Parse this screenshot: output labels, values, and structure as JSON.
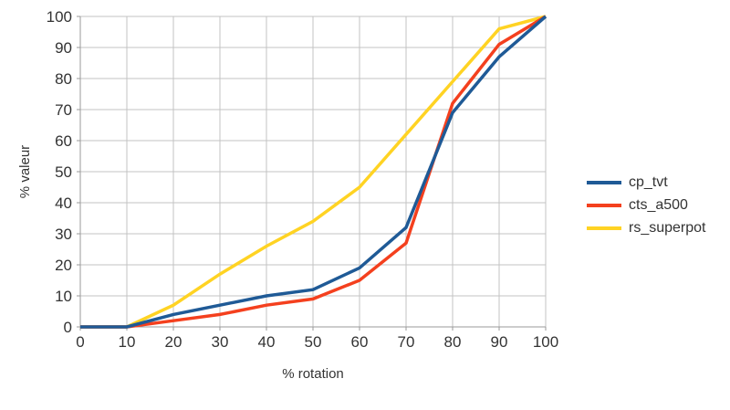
{
  "chart_data": {
    "type": "line",
    "title": "",
    "xlabel": "% rotation",
    "ylabel": "% valeur",
    "x": [
      0,
      10,
      20,
      30,
      40,
      50,
      60,
      70,
      80,
      90,
      100
    ],
    "series": [
      {
        "name": "cp_tvt",
        "color": "#1f5a96",
        "values": [
          0,
          0,
          4,
          7,
          10,
          12,
          19,
          32,
          69,
          87,
          100
        ]
      },
      {
        "name": "cts_a500",
        "color": "#f4401e",
        "values": [
          0,
          0,
          2,
          4,
          7,
          9,
          15,
          27,
          72,
          91,
          100
        ]
      },
      {
        "name": "rs_superpot",
        "color": "#ffd323",
        "values": [
          0,
          0,
          7,
          17,
          26,
          34,
          45,
          62,
          79,
          96,
          100
        ]
      }
    ],
    "draw_order": [
      2,
      1,
      0
    ],
    "xlim": [
      0,
      100
    ],
    "ylim": [
      0,
      100
    ],
    "x_ticks": [
      0,
      10,
      20,
      30,
      40,
      50,
      60,
      70,
      80,
      90,
      100
    ],
    "y_ticks": [
      0,
      10,
      20,
      30,
      40,
      50,
      60,
      70,
      80,
      90,
      100
    ],
    "grid": true,
    "legend_position": "right"
  },
  "colors": {
    "background": "#ffffff",
    "gridline": "#c3c3c3",
    "axis": "#9a9a9a",
    "text": "#333333"
  }
}
